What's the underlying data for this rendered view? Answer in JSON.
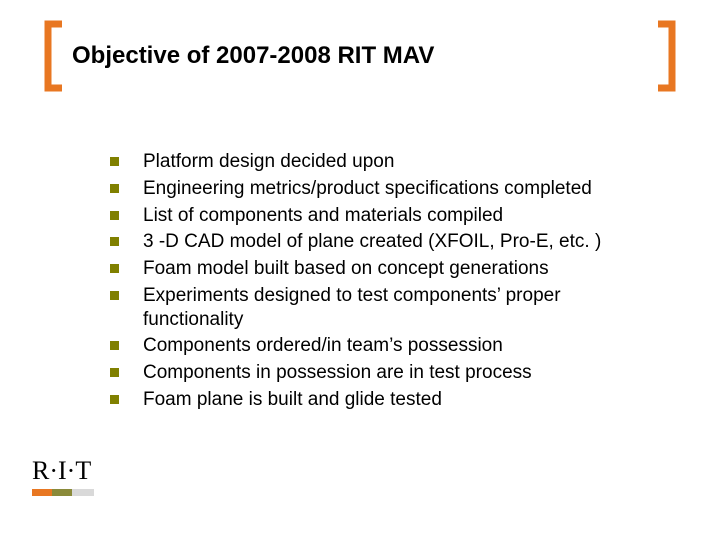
{
  "title": "Objective of 2007-2008 RIT MAV",
  "bracket_color": "#e87722",
  "bullet_color": "#808000",
  "text_color": "#000000",
  "body_font_size": 19,
  "bullets": [
    "Platform design decided upon",
    "Engineering metrics/product specifications completed",
    "List of components and materials compiled",
    "3 -D CAD model of plane created (XFOIL, Pro-E, etc. )",
    "Foam model built based on concept generations",
    "Experiments designed to test components’ proper functionality",
    "Components ordered/in team’s possession",
    "Components in possession are in test process",
    "Foam plane is built and glide tested"
  ],
  "logo": {
    "text": "R·I·T",
    "underline_colors": [
      "#e87722",
      "#8a8a3a",
      "#d9d9d9"
    ],
    "underline_widths": [
      20,
      20,
      22
    ]
  }
}
